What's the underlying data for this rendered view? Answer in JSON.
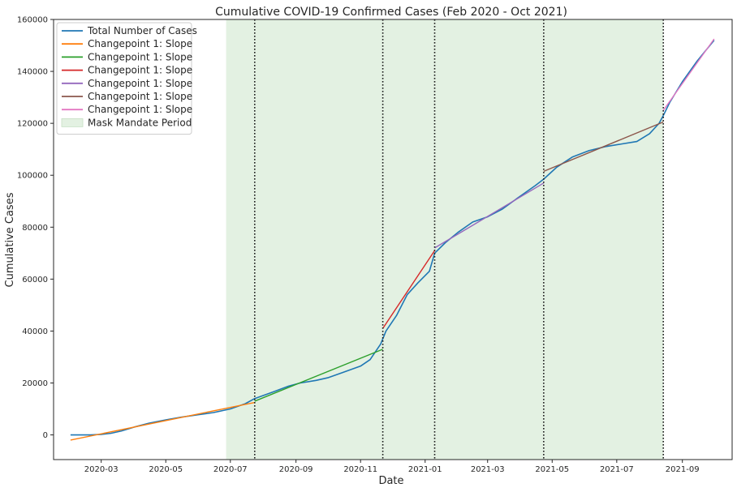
{
  "chart_data": {
    "type": "line",
    "title": "Cumulative COVID-19 Confirmed Cases (Feb 2020 - Oct 2021)",
    "xlabel": "Date",
    "ylabel": "Cumulative Cases",
    "xlim": [
      "2020-01-16",
      "2021-10-18"
    ],
    "ylim": [
      -9500,
      160000
    ],
    "x_ticks": [
      "2020-03",
      "2020-05",
      "2020-07",
      "2020-09",
      "2020-11",
      "2021-01",
      "2021-03",
      "2021-05",
      "2021-07",
      "2021-09"
    ],
    "y_ticks": [
      0,
      20000,
      40000,
      60000,
      80000,
      100000,
      120000,
      140000,
      160000
    ],
    "grid": false,
    "legend_position": "top-left",
    "shaded_regions": [
      {
        "name": "Mask Mandate Period",
        "start": "2020-06-27",
        "end": "2021-08-14",
        "color": "#e3f1e2"
      }
    ],
    "changepoints": [
      "2020-07-24",
      "2020-11-22",
      "2021-01-10",
      "2021-04-23",
      "2021-08-14"
    ],
    "series": [
      {
        "name": "Total Number of Cases",
        "color": "#1f77b4",
        "points": [
          [
            "2020-02-01",
            0
          ],
          [
            "2020-02-20",
            0
          ],
          [
            "2020-03-01",
            200
          ],
          [
            "2020-03-10",
            600
          ],
          [
            "2020-03-20",
            1500
          ],
          [
            "2020-04-01",
            3000
          ],
          [
            "2020-04-15",
            4500
          ],
          [
            "2020-05-01",
            5800
          ],
          [
            "2020-05-15",
            6800
          ],
          [
            "2020-06-01",
            7800
          ],
          [
            "2020-06-15",
            8600
          ],
          [
            "2020-07-01",
            10000
          ],
          [
            "2020-07-15",
            12000
          ],
          [
            "2020-07-24",
            14000
          ],
          [
            "2020-08-10",
            16500
          ],
          [
            "2020-08-25",
            18800
          ],
          [
            "2020-09-05",
            20000
          ],
          [
            "2020-09-20",
            21000
          ],
          [
            "2020-10-01",
            22000
          ],
          [
            "2020-10-15",
            24000
          ],
          [
            "2020-11-01",
            26500
          ],
          [
            "2020-11-10",
            29000
          ],
          [
            "2020-11-20",
            35000
          ],
          [
            "2020-11-25",
            40000
          ],
          [
            "2020-12-05",
            46000
          ],
          [
            "2020-12-15",
            54000
          ],
          [
            "2020-12-25",
            58500
          ],
          [
            "2021-01-05",
            63000
          ],
          [
            "2021-01-10",
            70000
          ],
          [
            "2021-01-20",
            74000
          ],
          [
            "2021-02-01",
            78000
          ],
          [
            "2021-02-15",
            82000
          ],
          [
            "2021-03-01",
            84000
          ],
          [
            "2021-03-15",
            87000
          ],
          [
            "2021-04-01",
            92000
          ],
          [
            "2021-04-15",
            96000
          ],
          [
            "2021-04-23",
            98500
          ],
          [
            "2021-05-05",
            103000
          ],
          [
            "2021-05-20",
            107000
          ],
          [
            "2021-06-05",
            109500
          ],
          [
            "2021-06-20",
            111000
          ],
          [
            "2021-07-05",
            112000
          ],
          [
            "2021-07-20",
            113000
          ],
          [
            "2021-08-01",
            116000
          ],
          [
            "2021-08-10",
            120000
          ],
          [
            "2021-08-14",
            123000
          ],
          [
            "2021-08-20",
            128000
          ],
          [
            "2021-09-01",
            136000
          ],
          [
            "2021-09-15",
            144000
          ],
          [
            "2021-10-01",
            152000
          ]
        ]
      },
      {
        "name": "Changepoint 1: Slope",
        "color": "#ff7f0e",
        "points": [
          [
            "2020-02-01",
            -2000
          ],
          [
            "2020-07-24",
            12500
          ]
        ]
      },
      {
        "name": "Changepoint 1: Slope",
        "color": "#2ca02c",
        "points": [
          [
            "2020-07-24",
            13000
          ],
          [
            "2020-11-22",
            33000
          ]
        ]
      },
      {
        "name": "Changepoint 1: Slope",
        "color": "#d62728",
        "points": [
          [
            "2020-11-22",
            41000
          ],
          [
            "2021-01-10",
            71000
          ]
        ]
      },
      {
        "name": "Changepoint 1: Slope",
        "color": "#9467bd",
        "points": [
          [
            "2021-01-10",
            72000
          ],
          [
            "2021-04-23",
            97000
          ]
        ]
      },
      {
        "name": "Changepoint 1: Slope",
        "color": "#8c564b",
        "points": [
          [
            "2021-04-23",
            101500
          ],
          [
            "2021-08-14",
            120500
          ]
        ]
      },
      {
        "name": "Changepoint 1: Slope",
        "color": "#e377c2",
        "points": [
          [
            "2021-08-14",
            125000
          ],
          [
            "2021-10-01",
            152500
          ]
        ]
      }
    ]
  }
}
